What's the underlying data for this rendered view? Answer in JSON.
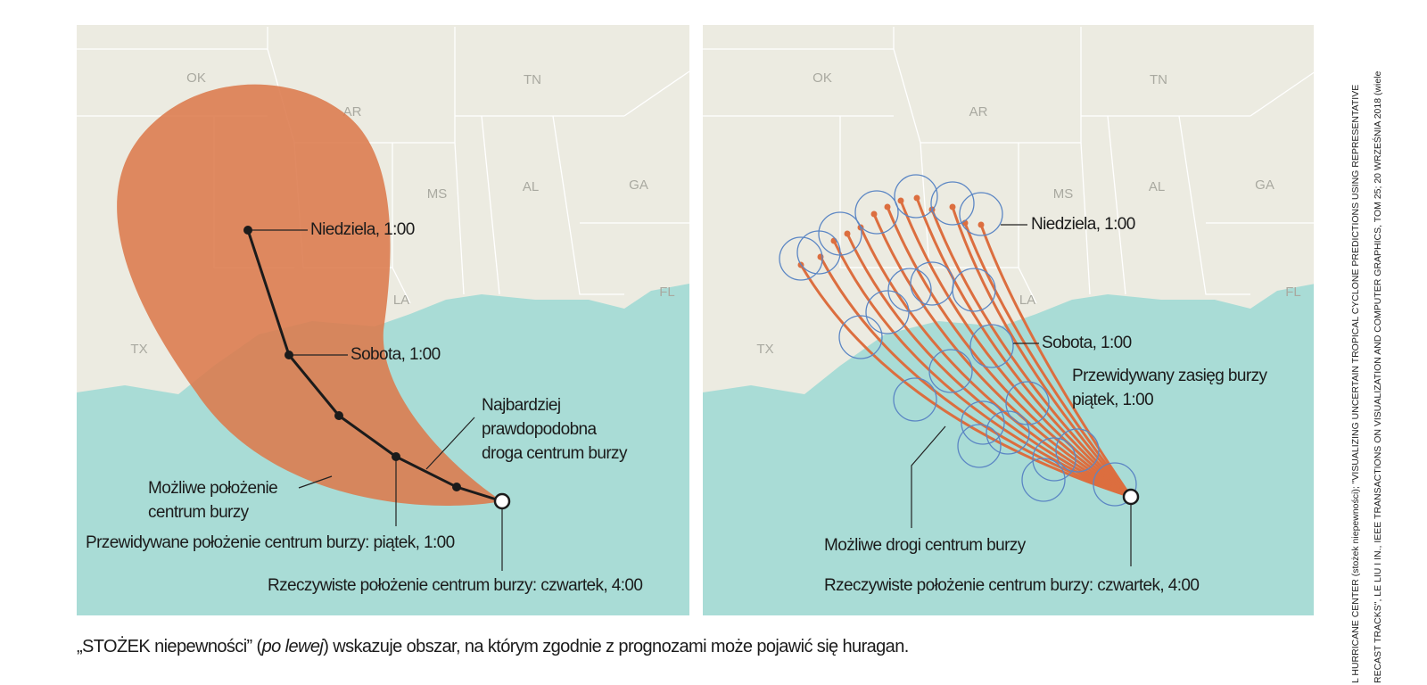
{
  "left_map": {
    "state_labels": [
      "OK",
      "AR",
      "TN",
      "MS",
      "AL",
      "GA",
      "LA",
      "FL",
      "TX"
    ],
    "sunday": "Niedziela, 1:00",
    "saturday": "Sobota, 1:00",
    "likely_path": [
      "Najbardziej",
      "prawdopodobna",
      "droga centrum burzy"
    ],
    "possible_position": [
      "Możliwe położenie",
      "centrum burzy"
    ],
    "predicted_position": "Przewidywane położenie centrum burzy: piątek, 1:00",
    "actual_position": "Rzeczywiste położenie centrum burzy: czwartek, 4:00"
  },
  "right_map": {
    "state_labels": [
      "OK",
      "AR",
      "TN",
      "MS",
      "AL",
      "GA",
      "LA",
      "FL",
      "TX"
    ],
    "sunday": "Niedziela, 1:00",
    "saturday": "Sobota, 1:00",
    "predicted_extent": [
      "Przewidywany zasięg burzy",
      "piątek, 1:00"
    ],
    "possible_paths": "Możliwe drogi centrum burzy",
    "actual_position": "Rzeczywiste położenie centrum burzy: czwartek, 4:00"
  },
  "caption": {
    "before": "„STOŻEK niepewności” (",
    "italic": "po lewej",
    "after": ") wskazuje obszar, na którym zgodnie z prognozami może pojawić się huragan."
  },
  "credit": [
    "L HURRICANE CENTER (stożek niepewności); \"VISUALIZING UNCERTAIN TROPICAL CYCLONE PREDICTIONS USING REPRESENTATIVE",
    "RECAST TRACKS\", LE LIU I IN., IEEE TRANSACTIONS ON VISUALIZATION AND COMPUTER GRAPHICS, TOM 25; 20 WRZEŚNIA 2018 (wiele"
  ]
}
